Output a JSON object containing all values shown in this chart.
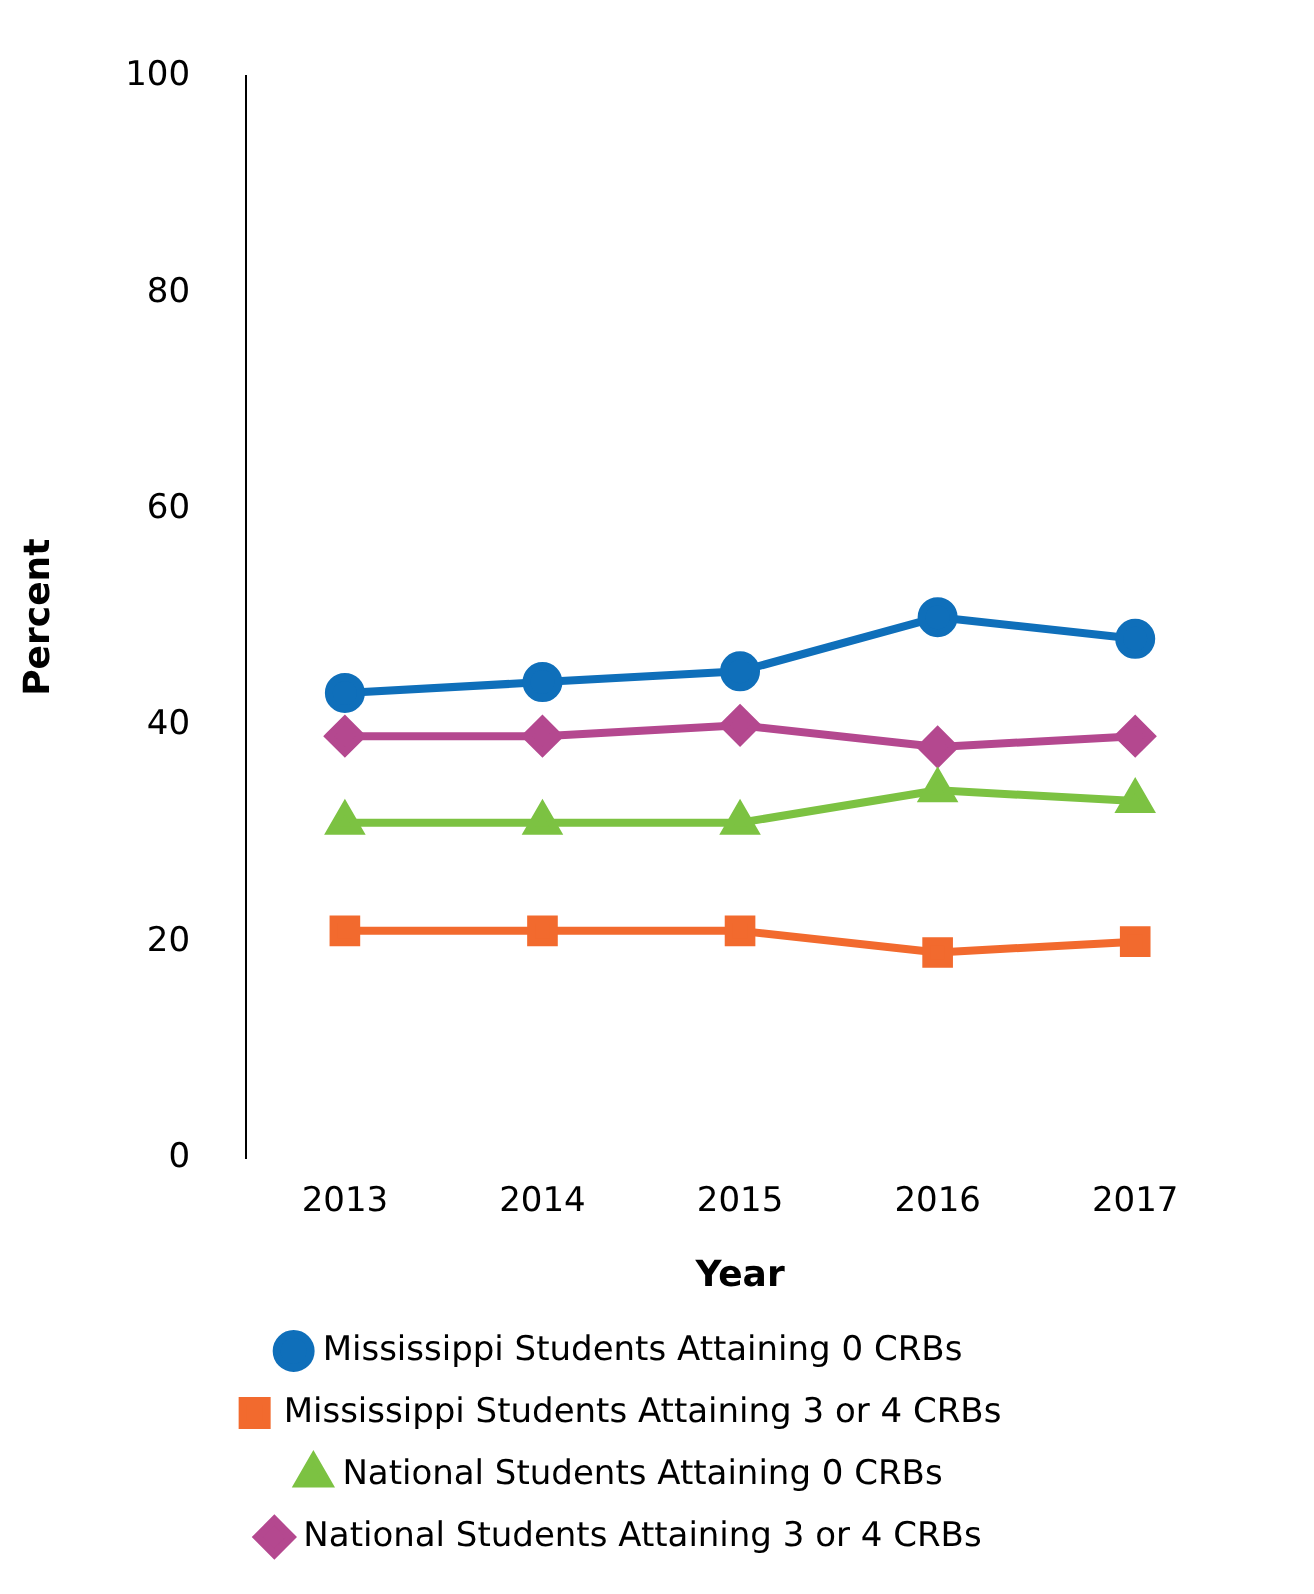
{
  "chart_data": {
    "type": "line",
    "xlabel": "Year",
    "ylabel": "Percent",
    "categories": [
      "2013",
      "2014",
      "2015",
      "2016",
      "2017"
    ],
    "ylim": [
      0,
      100
    ],
    "yticks": [
      0,
      20,
      40,
      60,
      80,
      100
    ],
    "grid": false,
    "legend": "bottom",
    "line_style": "solid",
    "series": [
      {
        "name": "Mississippi Students Attaining 0 CRBs",
        "color": "#0f6fba",
        "marker": "circle",
        "values": [
          43,
          44,
          45,
          50,
          48
        ]
      },
      {
        "name": "Mississippi Students Attaining 3 or 4 CRBs",
        "color": "#f26a2e",
        "marker": "square",
        "values": [
          21,
          21,
          21,
          19,
          20
        ]
      },
      {
        "name": "National Students Attaining 0 CRBs",
        "color": "#7cc242",
        "marker": "triangle",
        "values": [
          31,
          31,
          31,
          34,
          33
        ]
      },
      {
        "name": "National Students Attaining 3 or 4 CRBs",
        "color": "#b4488f",
        "marker": "diamond",
        "values": [
          39,
          39,
          40,
          38,
          39
        ]
      }
    ]
  }
}
